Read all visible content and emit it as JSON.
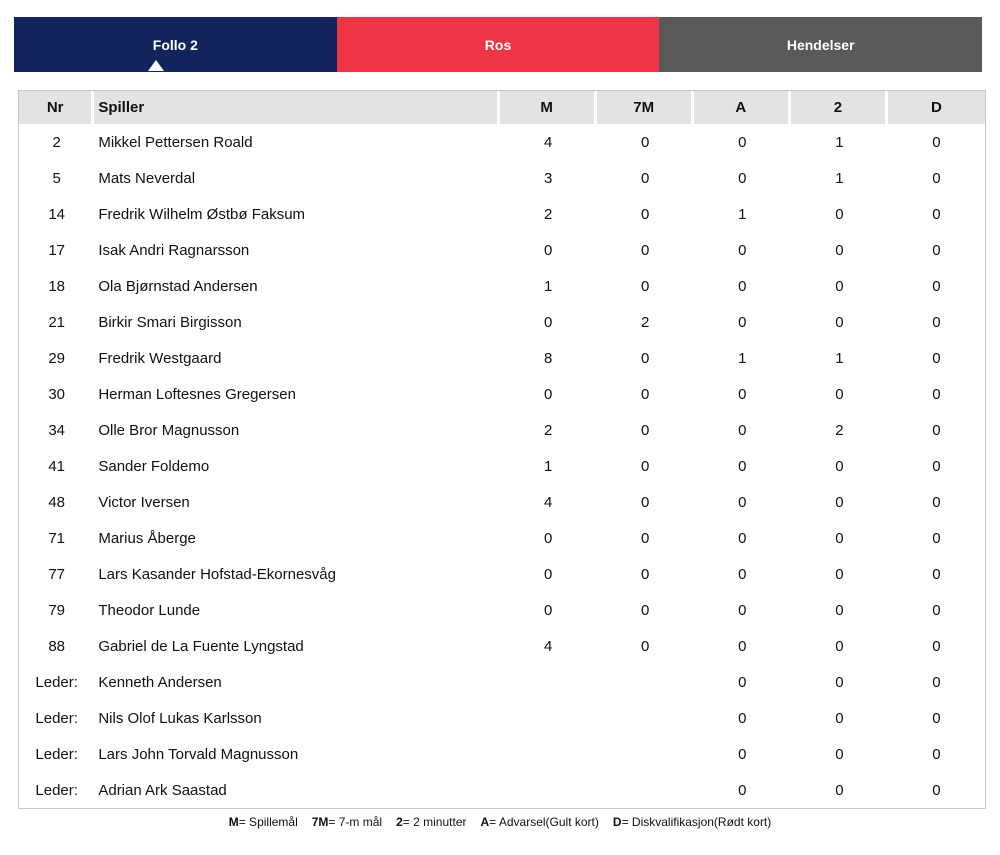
{
  "tabs": [
    {
      "label": "Follo 2",
      "color": "#12245c",
      "active": true
    },
    {
      "label": "Ros",
      "color": "#ee3445",
      "active": false
    },
    {
      "label": "Hendelser",
      "color": "#595959",
      "active": false
    }
  ],
  "table": {
    "columns": [
      "Nr",
      "Spiller",
      "M",
      "7M",
      "A",
      "2",
      "D"
    ],
    "rows": [
      [
        "2",
        "Mikkel Pettersen Roald",
        "4",
        "0",
        "0",
        "1",
        "0"
      ],
      [
        "5",
        "Mats Neverdal",
        "3",
        "0",
        "0",
        "1",
        "0"
      ],
      [
        "14",
        "Fredrik Wilhelm Østbø Faksum",
        "2",
        "0",
        "1",
        "0",
        "0"
      ],
      [
        "17",
        "Isak Andri Ragnarsson",
        "0",
        "0",
        "0",
        "0",
        "0"
      ],
      [
        "18",
        "Ola Bjørnstad Andersen",
        "1",
        "0",
        "0",
        "0",
        "0"
      ],
      [
        "21",
        "Birkir Smari Birgisson",
        "0",
        "2",
        "0",
        "0",
        "0"
      ],
      [
        "29",
        "Fredrik Westgaard",
        "8",
        "0",
        "1",
        "1",
        "0"
      ],
      [
        "30",
        "Herman Loftesnes Gregersen",
        "0",
        "0",
        "0",
        "0",
        "0"
      ],
      [
        "34",
        "Olle Bror Magnusson",
        "2",
        "0",
        "0",
        "2",
        "0"
      ],
      [
        "41",
        "Sander Foldemo",
        "1",
        "0",
        "0",
        "0",
        "0"
      ],
      [
        "48",
        "Victor Iversen",
        "4",
        "0",
        "0",
        "0",
        "0"
      ],
      [
        "71",
        "Marius Åberge",
        "0",
        "0",
        "0",
        "0",
        "0"
      ],
      [
        "77",
        "Lars Kasander Hofstad-Ekornesvåg",
        "0",
        "0",
        "0",
        "0",
        "0"
      ],
      [
        "79",
        "Theodor Lunde",
        "0",
        "0",
        "0",
        "0",
        "0"
      ],
      [
        "88",
        "Gabriel de La Fuente Lyngstad",
        "4",
        "0",
        "0",
        "0",
        "0"
      ],
      [
        "Leder:",
        "Kenneth Andersen",
        "",
        "",
        "0",
        "0",
        "0"
      ],
      [
        "Leder:",
        "Nils Olof Lukas Karlsson",
        "",
        "",
        "0",
        "0",
        "0"
      ],
      [
        "Leder:",
        "Lars John Torvald Magnusson",
        "",
        "",
        "0",
        "0",
        "0"
      ],
      [
        "Leder:",
        "Adrian Ark Saastad",
        "",
        "",
        "0",
        "0",
        "0"
      ]
    ]
  },
  "legend": {
    "items": [
      {
        "key": "M",
        "desc": "= Spillemål"
      },
      {
        "key": "7M",
        "desc": "= 7-m mål"
      },
      {
        "key": "2",
        "desc": "= 2 minutter"
      },
      {
        "key": "A",
        "desc": "= Advarsel(Gult kort)"
      },
      {
        "key": "D",
        "desc": "= Diskvalifikasjon(Rødt kort)"
      }
    ]
  },
  "colors": {
    "header_bg": "#e3e3e3",
    "border": "#c8c8c8",
    "active_tab": "#12245c",
    "ros_tab": "#ee3445",
    "hendelser_tab": "#595959"
  }
}
